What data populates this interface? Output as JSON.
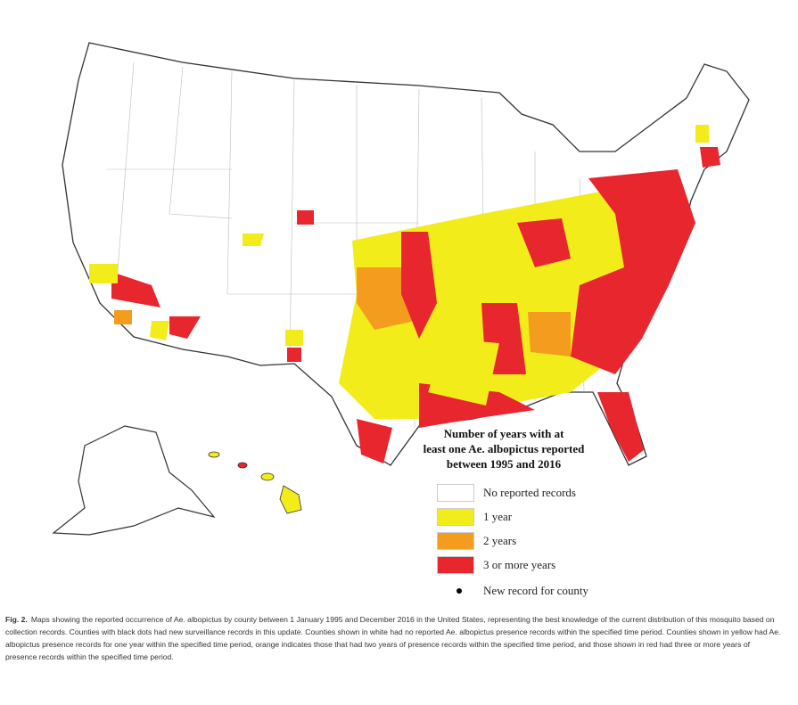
{
  "legend": {
    "title_lines": [
      "Number of years with at",
      "least one Ae. albopictus reported",
      "between 1995 and 2016"
    ],
    "items": [
      {
        "label": "No reported records",
        "color": "#ffffff"
      },
      {
        "label": "1 year",
        "color": "#f2ec1a"
      },
      {
        "label": "2 years",
        "color": "#f39c1e"
      },
      {
        "label": "3 or more years",
        "color": "#e8262e"
      }
    ],
    "dot_label": "New record for county"
  },
  "caption": {
    "label": "Fig. 2.",
    "text": "Maps showing the reported occurrence of Ae. albopictus by county between 1 January 1995 and December 2016 in the United States, representing the best knowledge of the current distribution of this mosquito based on collection records. Counties with black dots had new surveillance records in this update. Counties shown in white had no reported Ae. albopictus presence records within the specified time period. Counties shown in yellow had Ae. albopictus presence records for one year within the specified time period, orange indicates those that had two years of presence records within the specified time period, and those shown in red had three or more years of presence records within the specified time period."
  }
}
